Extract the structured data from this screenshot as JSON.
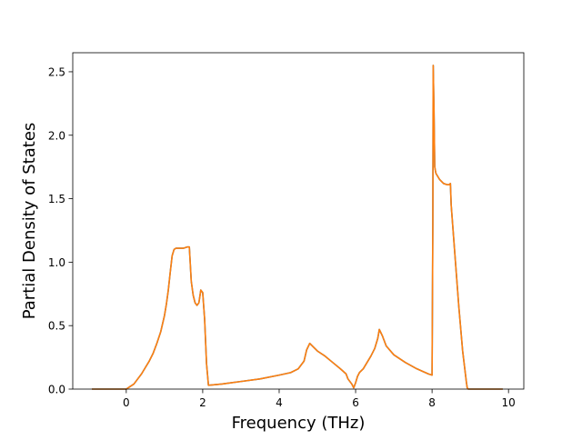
{
  "chart_data": {
    "type": "line",
    "title": "",
    "xlabel": "Frequency (THz)",
    "ylabel": "Partial Density of States",
    "xlim": [
      -1.4,
      10.4
    ],
    "ylim": [
      0,
      2.65
    ],
    "xticks": [
      0,
      2,
      4,
      6,
      8,
      10
    ],
    "xtick_labels": [
      "0",
      "2",
      "4",
      "6",
      "8",
      "10"
    ],
    "yticks": [
      0.0,
      0.5,
      1.0,
      1.5,
      2.0,
      2.5
    ],
    "ytick_labels": [
      "0.0",
      "0.5",
      "1.0",
      "1.5",
      "2.0",
      "2.5"
    ],
    "grid": false,
    "legend": "none",
    "series": [
      {
        "color": "#1f77b4",
        "x": [
          -0.9,
          0.0,
          0.1,
          0.2,
          0.3,
          0.4,
          0.5,
          0.6,
          0.7,
          0.8,
          0.9,
          1.0,
          1.05,
          1.1,
          1.15,
          1.2,
          1.25,
          1.3,
          1.4,
          1.5,
          1.6,
          1.65,
          1.7,
          1.75,
          1.8,
          1.85,
          1.9,
          1.95,
          2.0,
          2.05,
          2.1,
          2.15,
          2.5,
          3.0,
          3.5,
          4.0,
          4.3,
          4.5,
          4.65,
          4.72,
          4.8,
          5.0,
          5.2,
          5.4,
          5.6,
          5.75,
          5.8,
          5.9,
          5.95,
          6.0,
          6.05,
          6.1,
          6.2,
          6.3,
          6.4,
          6.5,
          6.58,
          6.62,
          6.7,
          6.8,
          7.0,
          7.3,
          7.6,
          7.9,
          8.0,
          8.02,
          8.03,
          8.05,
          8.07,
          8.1,
          8.2,
          8.3,
          8.4,
          8.45,
          8.48,
          8.5,
          8.6,
          8.7,
          8.8,
          8.9,
          8.92,
          8.95,
          9.2,
          9.5,
          9.85
        ],
        "y": [
          0.0,
          0.0,
          0.02,
          0.04,
          0.08,
          0.12,
          0.17,
          0.22,
          0.28,
          0.36,
          0.45,
          0.58,
          0.67,
          0.78,
          0.92,
          1.05,
          1.1,
          1.11,
          1.11,
          1.11,
          1.12,
          1.12,
          0.85,
          0.74,
          0.68,
          0.66,
          0.68,
          0.78,
          0.76,
          0.55,
          0.2,
          0.03,
          0.04,
          0.06,
          0.08,
          0.11,
          0.13,
          0.16,
          0.22,
          0.31,
          0.36,
          0.3,
          0.26,
          0.21,
          0.16,
          0.12,
          0.08,
          0.04,
          0.01,
          0.05,
          0.1,
          0.13,
          0.16,
          0.21,
          0.26,
          0.32,
          0.4,
          0.47,
          0.42,
          0.34,
          0.27,
          0.21,
          0.16,
          0.12,
          0.11,
          1.3,
          2.55,
          2.2,
          1.75,
          1.7,
          1.65,
          1.62,
          1.61,
          1.61,
          1.62,
          1.45,
          1.05,
          0.65,
          0.3,
          0.05,
          0.01,
          0.0,
          0.0,
          0.0,
          0.0
        ]
      },
      {
        "color": "#ff7f0e",
        "x": [
          -0.9,
          0.0,
          0.1,
          0.2,
          0.3,
          0.4,
          0.5,
          0.6,
          0.7,
          0.8,
          0.9,
          1.0,
          1.05,
          1.1,
          1.15,
          1.2,
          1.25,
          1.3,
          1.4,
          1.5,
          1.6,
          1.65,
          1.7,
          1.75,
          1.8,
          1.85,
          1.9,
          1.95,
          2.0,
          2.05,
          2.1,
          2.15,
          2.5,
          3.0,
          3.5,
          4.0,
          4.3,
          4.5,
          4.65,
          4.72,
          4.8,
          5.0,
          5.2,
          5.4,
          5.6,
          5.75,
          5.8,
          5.9,
          5.95,
          6.0,
          6.05,
          6.1,
          6.2,
          6.3,
          6.4,
          6.5,
          6.58,
          6.62,
          6.7,
          6.8,
          7.0,
          7.3,
          7.6,
          7.9,
          8.0,
          8.02,
          8.03,
          8.05,
          8.07,
          8.1,
          8.2,
          8.3,
          8.4,
          8.45,
          8.48,
          8.5,
          8.6,
          8.7,
          8.8,
          8.9,
          8.92,
          8.95,
          9.2,
          9.5,
          9.85
        ],
        "y": [
          0.0,
          0.0,
          0.02,
          0.04,
          0.08,
          0.12,
          0.17,
          0.22,
          0.28,
          0.36,
          0.45,
          0.58,
          0.67,
          0.78,
          0.92,
          1.05,
          1.1,
          1.11,
          1.11,
          1.11,
          1.12,
          1.12,
          0.85,
          0.74,
          0.68,
          0.66,
          0.68,
          0.78,
          0.76,
          0.55,
          0.2,
          0.03,
          0.04,
          0.06,
          0.08,
          0.11,
          0.13,
          0.16,
          0.22,
          0.31,
          0.36,
          0.3,
          0.26,
          0.21,
          0.16,
          0.12,
          0.08,
          0.04,
          0.01,
          0.05,
          0.1,
          0.13,
          0.16,
          0.21,
          0.26,
          0.32,
          0.4,
          0.47,
          0.42,
          0.34,
          0.27,
          0.21,
          0.16,
          0.12,
          0.11,
          1.3,
          2.55,
          2.2,
          1.75,
          1.7,
          1.65,
          1.62,
          1.61,
          1.61,
          1.62,
          1.45,
          1.05,
          0.65,
          0.3,
          0.05,
          0.01,
          0.0,
          0.0,
          0.0,
          0.0
        ]
      }
    ]
  }
}
